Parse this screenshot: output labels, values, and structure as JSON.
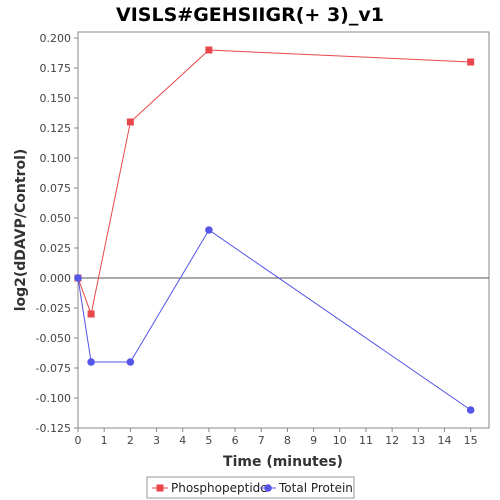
{
  "chart_data": {
    "type": "line",
    "title": "VISLS#GEHSIIGR(+ 3)_v1",
    "xlabel": "Time (minutes)",
    "ylabel": "log2(dDAVP/Control)",
    "xlim": [
      0,
      15.7
    ],
    "ylim": [
      -0.125,
      0.205
    ],
    "xticks": [
      0,
      1,
      2,
      3,
      4,
      5,
      6,
      7,
      8,
      9,
      10,
      11,
      12,
      13,
      14,
      15
    ],
    "xtick_labels": [
      "0",
      "1",
      "2",
      "3",
      "4",
      "5",
      "6",
      "7",
      "8",
      "9",
      "10",
      "11",
      "12",
      "13",
      "14",
      "15"
    ],
    "yticks": [
      0.2,
      0.175,
      0.15,
      0.125,
      0.1,
      0.075,
      0.05,
      0.025,
      0.0,
      -0.025,
      -0.05,
      -0.075,
      -0.1,
      -0.125
    ],
    "ytick_labels": [
      "0.200",
      "0.175",
      "0.150",
      "0.125",
      "0.100",
      "0.075",
      "0.050",
      "0.025",
      "0.000",
      "-0.025",
      "-0.050",
      "-0.075",
      "-0.100",
      "-0.125"
    ],
    "grid": false,
    "zero_line": true,
    "legend_position": "bottom",
    "series": [
      {
        "name": "Phosphopeptide",
        "color": "#e8474b",
        "marker": "square",
        "x": [
          0,
          0.5,
          2,
          5,
          15
        ],
        "y": [
          0.0,
          -0.03,
          0.13,
          0.19,
          0.18
        ]
      },
      {
        "name": "Total Protein",
        "color": "#5555e8",
        "marker": "circle",
        "x": [
          0,
          0.5,
          2,
          5,
          15
        ],
        "y": [
          0.0,
          -0.07,
          -0.07,
          0.04,
          -0.11
        ]
      }
    ]
  }
}
